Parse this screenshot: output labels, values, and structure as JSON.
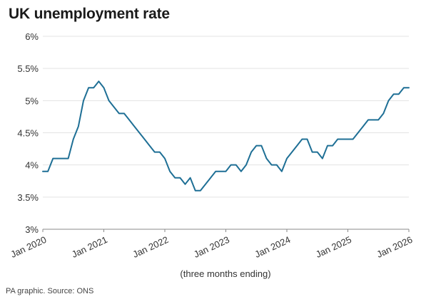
{
  "chart_data": {
    "type": "line",
    "title": "UK unemployment rate",
    "xlabel": "(three months ending)",
    "ylabel": "",
    "source": "PA graphic. Source: ONS",
    "ylim": [
      3,
      6
    ],
    "xlim": [
      "2020-01",
      "2026-01"
    ],
    "yticks": [
      {
        "value": 3,
        "label": "3%"
      },
      {
        "value": 3.5,
        "label": "3.5%"
      },
      {
        "value": 4,
        "label": "4%"
      },
      {
        "value": 4.5,
        "label": "4.5%"
      },
      {
        "value": 5,
        "label": "5%"
      },
      {
        "value": 5.5,
        "label": "5.5%"
      },
      {
        "value": 6,
        "label": "6%"
      }
    ],
    "xticks": [
      {
        "value": "2020-01",
        "label": "Jan 2020"
      },
      {
        "value": "2021-01",
        "label": "Jan 2021"
      },
      {
        "value": "2022-01",
        "label": "Jan 2022"
      },
      {
        "value": "2023-01",
        "label": "Jan 2023"
      },
      {
        "value": "2024-01",
        "label": "Jan 2024"
      },
      {
        "value": "2025-01",
        "label": "Jan 2025"
      },
      {
        "value": "2026-01",
        "label": "Jan 2026"
      }
    ],
    "grid": "horizontal",
    "line_color": "#1e6f95",
    "series": [
      {
        "x": [
          "2020-01",
          "2020-02",
          "2020-03",
          "2020-04",
          "2020-05",
          "2020-06",
          "2020-07",
          "2020-08",
          "2020-09",
          "2020-10",
          "2020-11",
          "2020-12",
          "2021-01",
          "2021-02",
          "2021-03",
          "2021-04",
          "2021-05",
          "2021-06",
          "2021-07",
          "2021-08",
          "2021-09",
          "2021-10",
          "2021-11",
          "2021-12",
          "2022-01",
          "2022-02",
          "2022-03",
          "2022-04",
          "2022-05",
          "2022-06",
          "2022-07",
          "2022-08",
          "2022-09",
          "2022-10",
          "2022-11",
          "2022-12",
          "2023-01",
          "2023-02",
          "2023-03",
          "2023-04",
          "2023-05",
          "2023-06",
          "2023-07",
          "2023-08",
          "2023-09",
          "2023-10",
          "2023-11",
          "2023-12",
          "2024-01",
          "2024-02",
          "2024-03",
          "2024-04",
          "2024-05",
          "2024-06",
          "2024-07",
          "2024-08",
          "2024-09",
          "2024-10",
          "2024-11",
          "2024-12",
          "2025-01",
          "2025-02",
          "2025-03",
          "2025-04",
          "2025-05",
          "2025-06",
          "2025-07",
          "2025-08",
          "2025-09",
          "2025-10",
          "2025-11",
          "2025-12",
          "2026-01"
        ],
        "values": [
          3.9,
          3.9,
          4.1,
          4.1,
          4.1,
          4.1,
          4.4,
          4.6,
          5.0,
          5.2,
          5.2,
          5.3,
          5.2,
          5.0,
          4.9,
          4.8,
          4.8,
          4.7,
          4.6,
          4.5,
          4.4,
          4.3,
          4.2,
          4.2,
          4.1,
          3.9,
          3.8,
          3.8,
          3.7,
          3.8,
          3.6,
          3.6,
          3.7,
          3.8,
          3.9,
          3.9,
          3.9,
          4.0,
          4.0,
          3.9,
          4.0,
          4.2,
          4.3,
          4.3,
          4.1,
          4.0,
          4.0,
          3.9,
          4.1,
          4.2,
          4.3,
          4.4,
          4.4,
          4.2,
          4.2,
          4.1,
          4.3,
          4.3,
          4.4,
          4.4,
          4.4,
          4.4,
          4.5,
          4.6,
          4.7,
          4.7,
          4.7,
          4.8,
          5.0,
          5.1,
          5.1,
          5.2,
          5.2
        ]
      }
    ]
  }
}
